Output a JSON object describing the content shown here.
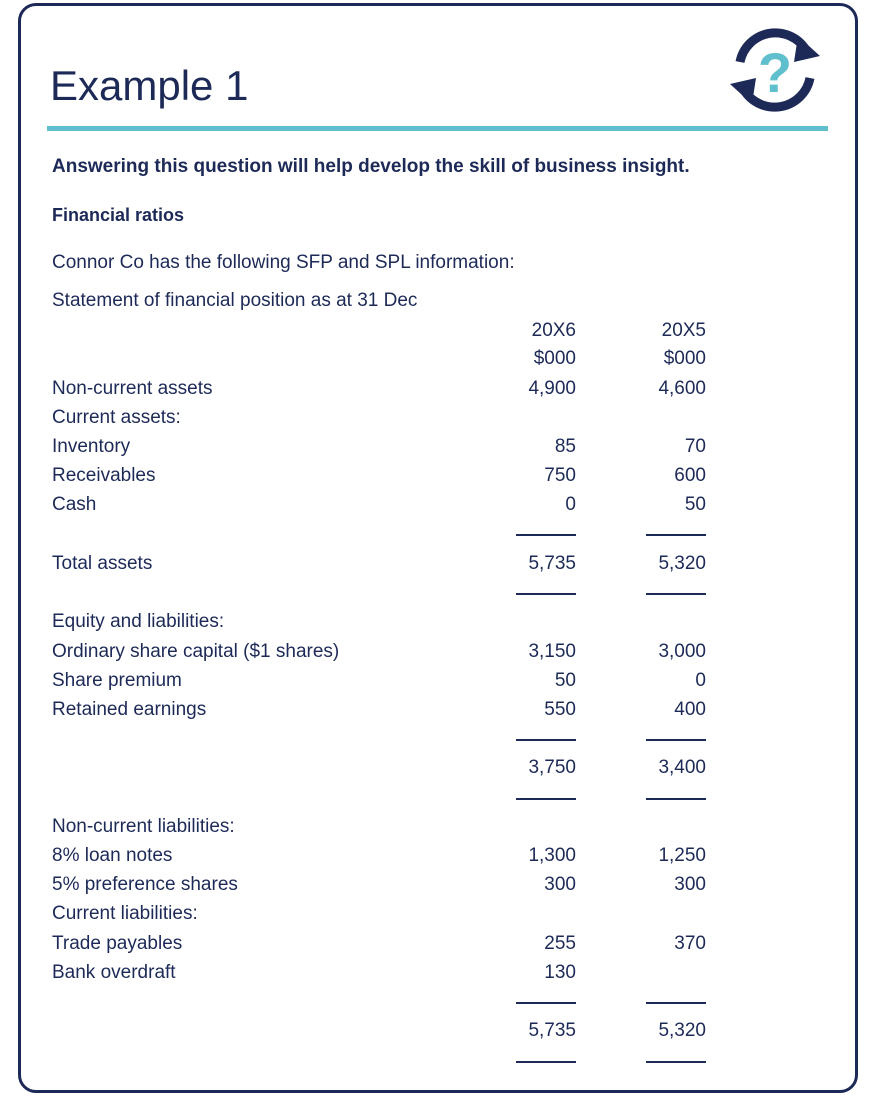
{
  "header": {
    "title": "Example 1"
  },
  "intro": "Answering this question will help develop the skill of business insight.",
  "subheading": "Financial ratios",
  "lines": [
    "Connor Co has the following SFP and SPL information:",
    "Statement of financial position as at 31 Dec"
  ],
  "table": {
    "columns": [
      {
        "year": "20X6",
        "unit": "$000"
      },
      {
        "year": "20X5",
        "unit": "$000"
      }
    ],
    "rows": [
      {
        "label": "Non-current assets",
        "values": [
          "4,900",
          "4,600"
        ]
      },
      {
        "label": "Current assets:"
      },
      {
        "label": "Inventory",
        "values": [
          "85",
          "70"
        ]
      },
      {
        "label": "Receivables",
        "values": [
          "750",
          "600"
        ]
      },
      {
        "label": "Cash",
        "values": [
          "0",
          "50"
        ]
      },
      {
        "label": "Total assets",
        "values": [
          "5,735",
          "5,320"
        ]
      },
      {
        "label": "Equity and liabilities:"
      },
      {
        "label": "Ordinary share capital ($1 shares)",
        "values": [
          "3,150",
          "3,000"
        ]
      },
      {
        "label": "Share premium",
        "values": [
          "50",
          "0"
        ]
      },
      {
        "label": "Retained earnings",
        "values": [
          "550",
          "400"
        ]
      },
      {
        "values": [
          "3,750",
          "3,400"
        ]
      },
      {
        "label": "Non-current liabilities:"
      },
      {
        "label": "8% loan notes",
        "values": [
          "1,300",
          "1,250"
        ]
      },
      {
        "label": "5% preference shares",
        "values": [
          "300",
          "300"
        ]
      },
      {
        "label": "Current liabilities:"
      },
      {
        "label": "Trade payables",
        "values": [
          "255",
          "370"
        ]
      },
      {
        "label": "Bank overdraft",
        "values": [
          "130",
          null
        ]
      },
      {
        "values": [
          "5,735",
          "5,320"
        ]
      }
    ]
  }
}
